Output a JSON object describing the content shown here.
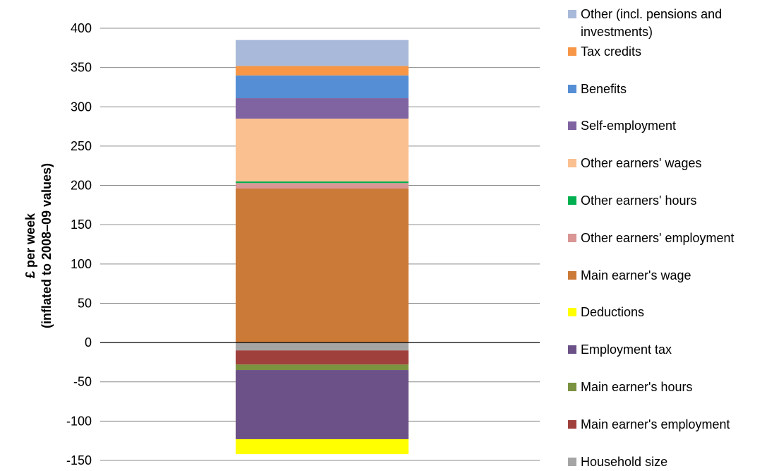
{
  "chart_data": {
    "type": "bar",
    "stacked": true,
    "categories": [
      ""
    ],
    "ylabel": [
      "£ per week",
      "(inflated to 2008–09 values)"
    ],
    "ylim": [
      -150,
      400
    ],
    "yticks": [
      -150,
      -100,
      -50,
      0,
      50,
      100,
      150,
      200,
      250,
      300,
      350,
      400
    ],
    "grid": true,
    "legend_position": "right",
    "series": [
      {
        "name": "Household size",
        "value": -10,
        "color": "#a5a5a5"
      },
      {
        "name": "Main earner's employment",
        "value": -18,
        "color": "#a0403c"
      },
      {
        "name": "Main earner's hours",
        "value": -7,
        "color": "#7b9240"
      },
      {
        "name": "Employment tax",
        "value": -88,
        "color": "#6b5187"
      },
      {
        "name": "Deductions",
        "value": -19,
        "color": "#ffff00"
      },
      {
        "name": "Main earner's wage",
        "value": 196,
        "color": "#cc7a38"
      },
      {
        "name": "Other earners' employment",
        "value": 7,
        "color": "#d99694"
      },
      {
        "name": "Other earners' hours",
        "value": 2,
        "color": "#00b050"
      },
      {
        "name": "Other earners' wages",
        "value": 80,
        "color": "#fac090"
      },
      {
        "name": "Self-employment",
        "value": 26,
        "color": "#8064a2"
      },
      {
        "name": "Benefits",
        "value": 29,
        "color": "#558ed5"
      },
      {
        "name": "Tax credits",
        "value": 12,
        "color": "#f79646"
      },
      {
        "name": "Other (incl. pensions and investments)",
        "value": 33,
        "color": "#a9b9d9"
      }
    ]
  },
  "legend_order": [
    12,
    11,
    10,
    9,
    8,
    7,
    6,
    5,
    4,
    3,
    2,
    1,
    0
  ]
}
